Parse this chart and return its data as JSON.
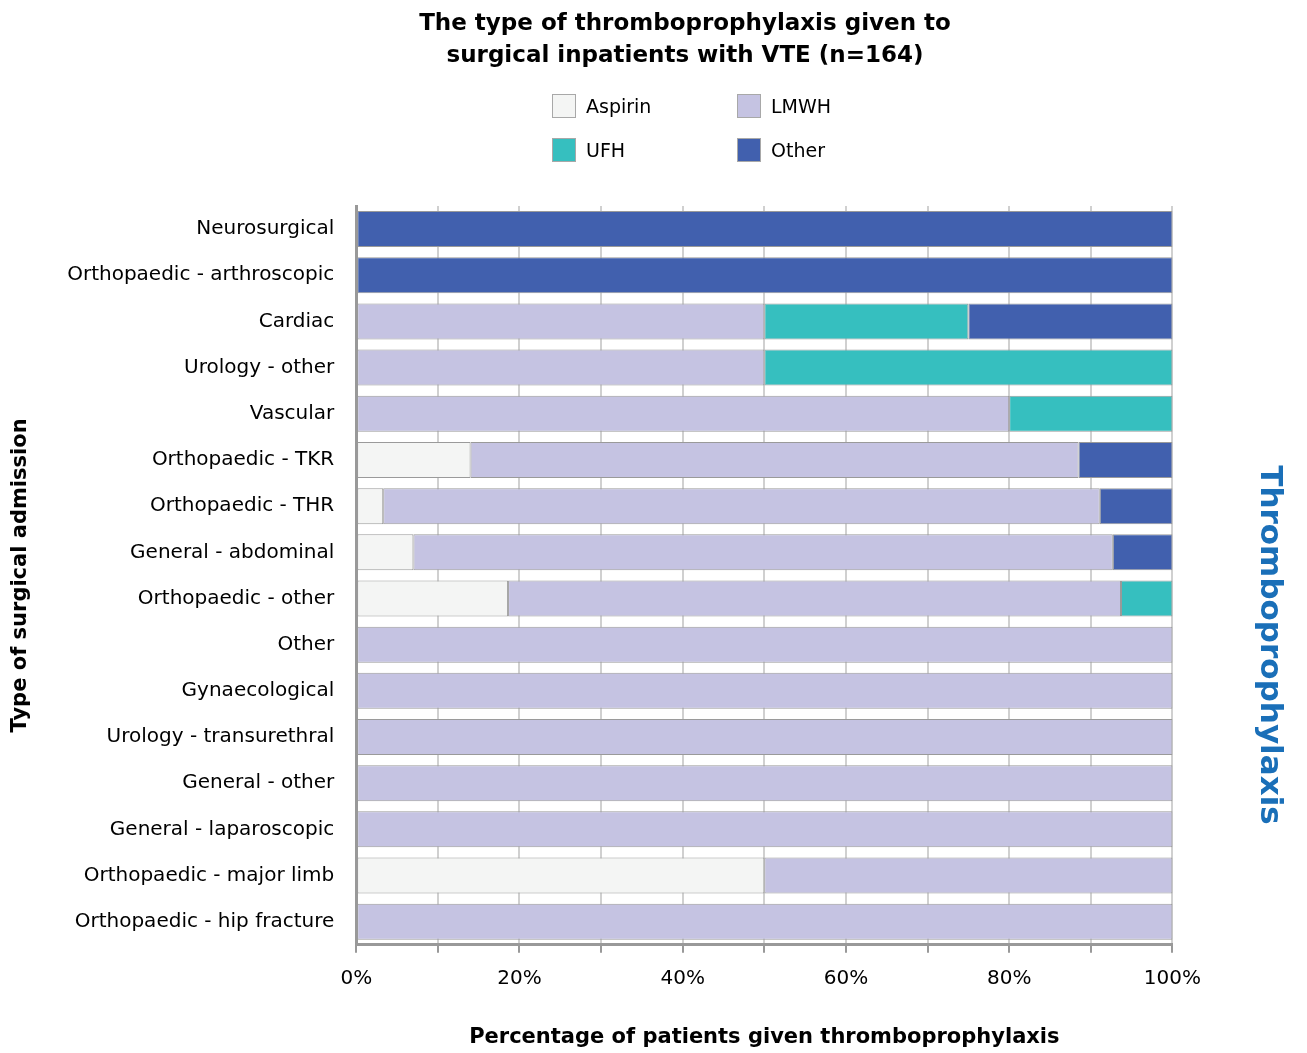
{
  "chart_data": {
    "type": "bar",
    "orientation": "horizontal",
    "stacked": true,
    "title": "The type of thromboprophylaxis given to surgical inpatients with VTE (n=164)",
    "xlabel": "Percentage of patients given thromboprophylaxis",
    "ylabel": "Type of surgical admission",
    "annotations": [
      "Thromboprophylaxis"
    ],
    "categories": [
      "Neurosurgical",
      "Orthopaedic - arthroscopic",
      "Cardiac",
      "Urology - other",
      "Vascular",
      "Orthopaedic - TKR",
      "Orthopaedic - THR",
      "General - abdominal",
      "Orthopaedic - other",
      "Other",
      "Gynaecological",
      "Urology - transurethral",
      "General - other",
      "General - laparoscopic",
      "Orthopaedic - major limb",
      "Orthopaedic - hip fracture"
    ],
    "series": [
      {
        "name": "Aspirin",
        "color": "#f4f5f4",
        "values": [
          0,
          0,
          0,
          0,
          0,
          14,
          3.3,
          7,
          18.6,
          0,
          0,
          0,
          0,
          0,
          50,
          0
        ]
      },
      {
        "name": "LMWH",
        "color": "#c5c3e2",
        "values": [
          0,
          0,
          50,
          50,
          80,
          74.5,
          87.8,
          85.7,
          75.1,
          100,
          100,
          100,
          100,
          100,
          50,
          100
        ]
      },
      {
        "name": "UFH",
        "color": "#36bfbf",
        "values": [
          0,
          0,
          25,
          50,
          20,
          0,
          0,
          0,
          6.3,
          0,
          0,
          0,
          0,
          0,
          0,
          0
        ]
      },
      {
        "name": "Other",
        "color": "#4160ae",
        "values": [
          100,
          100,
          25,
          0,
          0,
          11.5,
          8.9,
          7.3,
          0,
          0,
          0,
          0,
          0,
          0,
          0,
          0
        ]
      }
    ],
    "xlim": [
      0,
      100
    ],
    "xticks": [
      {
        "value": 0,
        "label": "0%"
      },
      {
        "value": 10,
        "label": null
      },
      {
        "value": 20,
        "label": "20%"
      },
      {
        "value": 30,
        "label": null
      },
      {
        "value": 40,
        "label": "40%"
      },
      {
        "value": 50,
        "label": null
      },
      {
        "value": 60,
        "label": "60%"
      },
      {
        "value": 70,
        "label": null
      },
      {
        "value": 80,
        "label": "80%"
      },
      {
        "value": 90,
        "label": null
      },
      {
        "value": 100,
        "label": "100%"
      }
    ],
    "grid": "x",
    "legend": "top"
  }
}
